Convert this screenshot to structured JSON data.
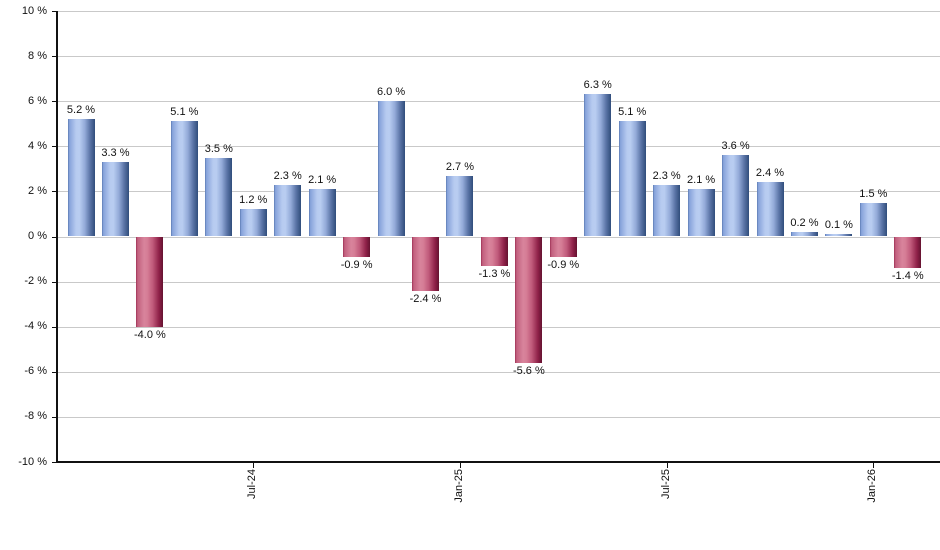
{
  "chart_data": {
    "type": "bar",
    "title": "",
    "xlabel": "",
    "ylabel": "",
    "ylim": [
      -10,
      10
    ],
    "y_step": 2,
    "grid": true,
    "legend": "none",
    "y_tick_labels": [
      "10 %",
      "8 %",
      "6 %",
      "4 %",
      "2 %",
      "0 %",
      "-2 %",
      "-4 %",
      "-6 %",
      "-8 %",
      "-10 %"
    ],
    "y_tick_values": [
      10,
      8,
      6,
      4,
      2,
      0,
      -2,
      -4,
      -6,
      -8,
      -10
    ],
    "values": [
      5.2,
      3.3,
      -4.0,
      5.1,
      3.5,
      1.2,
      2.3,
      2.1,
      -0.9,
      6.0,
      -2.4,
      2.7,
      -1.3,
      -5.6,
      -0.9,
      6.3,
      5.1,
      2.3,
      2.1,
      3.6,
      2.4,
      0.2,
      0.1,
      1.5,
      -1.4
    ],
    "bar_labels": [
      "5.2 %",
      "3.3 %",
      "-4.0 %",
      "5.1 %",
      "3.5 %",
      "1.2 %",
      "2.3 %",
      "2.1 %",
      "-0.9 %",
      "6.0 %",
      "-2.4 %",
      "2.7 %",
      "-1.3 %",
      "-5.6 %",
      "-0.9 %",
      "6.3 %",
      "5.1 %",
      "2.3 %",
      "2.1 %",
      "3.6 %",
      "2.4 %",
      "0.2 %",
      "0.1 %",
      "1.5 %",
      "-1.4 %"
    ],
    "x_ticks": [
      {
        "label": "Jul-24",
        "bar_index": 5
      },
      {
        "label": "Jan-25",
        "bar_index": 11
      },
      {
        "label": "Jul-25",
        "bar_index": 17
      },
      {
        "label": "Jan-26",
        "bar_index": 23
      }
    ],
    "colors": {
      "positive_bar": "#7f9dd6",
      "positive_bar_edge": "#304d7b",
      "negative_bar": "#c2607e",
      "negative_bar_edge": "#641230",
      "gridline": "#c9c9c9",
      "axis": "#111111",
      "background": "#ffffff",
      "label_text": "#111111"
    }
  }
}
